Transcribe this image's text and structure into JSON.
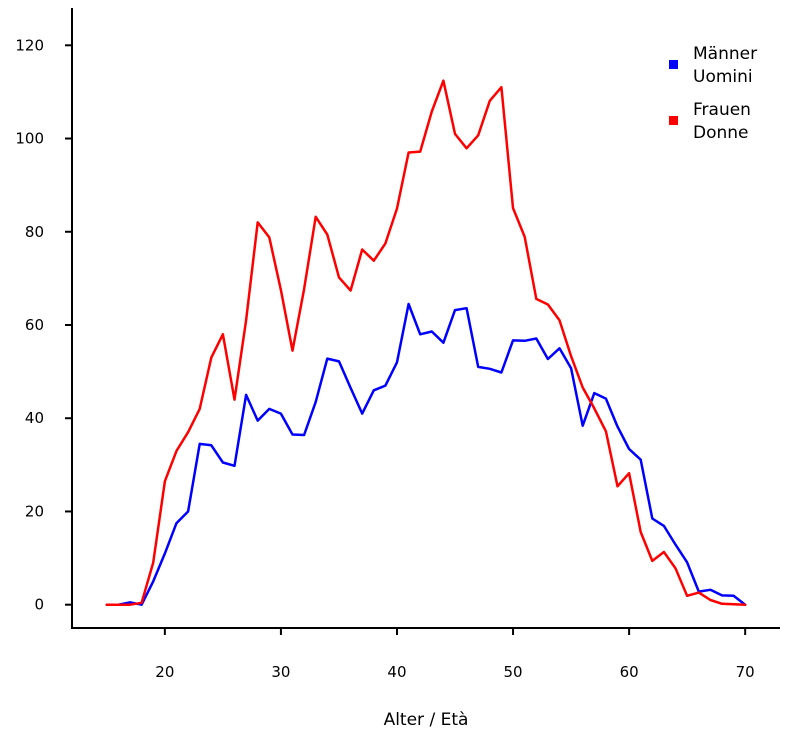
{
  "chart_data": {
    "type": "line",
    "xlabel": "Alter / Età",
    "ylabel": "",
    "xlim": [
      12,
      73
    ],
    "ylim": [
      -5,
      128
    ],
    "xticks": [
      20,
      30,
      40,
      50,
      60,
      70
    ],
    "yticks": [
      0,
      20,
      40,
      60,
      80,
      100,
      120
    ],
    "grid": false,
    "legend_position": "top-right",
    "series": [
      {
        "name": [
          "Männer",
          "Uomini"
        ],
        "color": "#0000ff",
        "x": [
          15,
          16,
          17,
          18,
          19,
          20,
          21,
          22,
          23,
          24,
          25,
          26,
          27,
          28,
          29,
          30,
          31,
          32,
          33,
          34,
          35,
          36,
          37,
          38,
          39,
          40,
          41,
          42,
          43,
          44,
          45,
          46,
          47,
          48,
          49,
          50,
          51,
          52,
          53,
          54,
          55,
          56,
          57,
          58,
          59,
          60,
          61,
          62,
          63,
          64,
          65,
          66,
          67,
          68,
          69,
          70
        ],
        "values": [
          0,
          0,
          0.5,
          0,
          5,
          11,
          17.5,
          20,
          34.5,
          34.2,
          30.5,
          29.8,
          45,
          39.5,
          42,
          41,
          36.5,
          36.4,
          43.5,
          52.8,
          52.2,
          46.5,
          41,
          46,
          47,
          52,
          64.5,
          58,
          58.6,
          56.2,
          63.2,
          63.6,
          51,
          50.6,
          49.8,
          56.7,
          56.6,
          57.1,
          52.7,
          55,
          50.7,
          38.4,
          45.4,
          44.2,
          38.2,
          33.4,
          31.1,
          18.5,
          16.9,
          12.9,
          9.1,
          2.8,
          3.2,
          2.0,
          1.9,
          0
        ]
      },
      {
        "name": [
          "Frauen",
          "Donne"
        ],
        "color": "#ff0000",
        "x": [
          15,
          16,
          17,
          18,
          19,
          20,
          21,
          22,
          23,
          24,
          25,
          26,
          27,
          28,
          29,
          30,
          31,
          32,
          33,
          34,
          35,
          36,
          37,
          38,
          39,
          40,
          41,
          42,
          43,
          44,
          45,
          46,
          47,
          48,
          49,
          50,
          51,
          52,
          53,
          54,
          55,
          56,
          57,
          58,
          59,
          60,
          61,
          62,
          63,
          64,
          65,
          66,
          67,
          68,
          69,
          70
        ],
        "values": [
          0,
          0,
          0,
          0.4,
          9,
          26.5,
          33,
          37,
          42,
          53,
          58,
          44,
          61,
          82,
          78.8,
          67.5,
          54.5,
          67.7,
          83.2,
          79.4,
          70.2,
          67.4,
          76.2,
          73.8,
          77.5,
          85,
          97,
          97.2,
          105.8,
          112.4,
          101,
          97.9,
          100.7,
          108.1,
          111,
          85.1,
          78.9,
          65.6,
          64.4,
          61,
          53.3,
          46.6,
          42.1,
          37.2,
          25.4,
          28.2,
          15.6,
          9.4,
          11.3,
          7.8,
          1.9,
          2.6,
          1.0,
          0.2,
          0.1,
          0
        ]
      }
    ]
  }
}
